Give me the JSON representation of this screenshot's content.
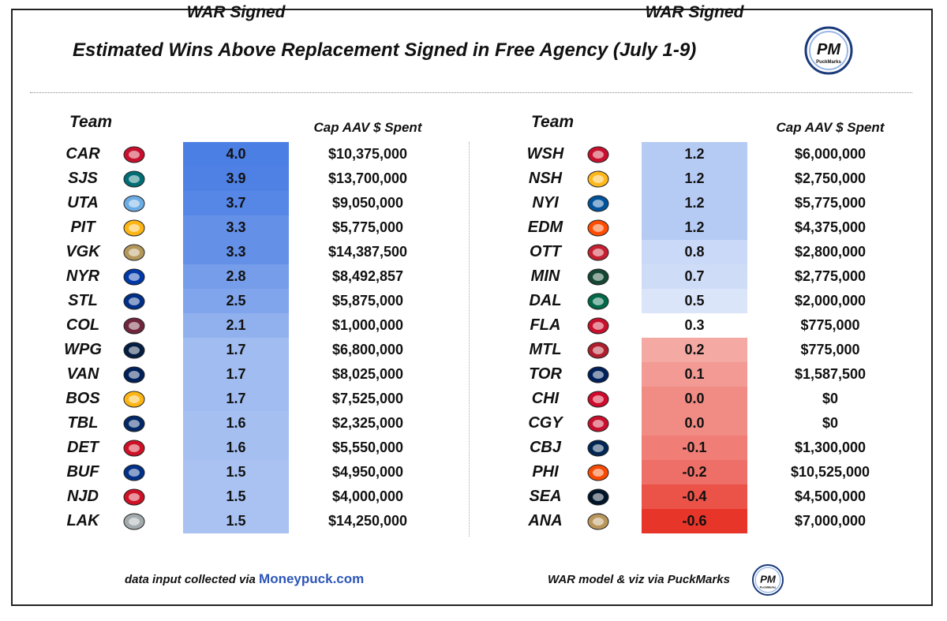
{
  "title": "Estimated Wins Above Replacement Signed in Free Agency (July 1-9)",
  "logo": {
    "text": "PM",
    "subtext": "PuckMarks"
  },
  "headers": {
    "team": "Team",
    "war": "WAR Signed",
    "cap": "Cap AAV $ Spent"
  },
  "colors": {
    "positive_max": "#4c7fe4",
    "positive_min": "#f4f7fd",
    "negative_max": "#e8352a",
    "negative_min": "#f5b0ab",
    "text": "#111111"
  },
  "chart_data": {
    "type": "table",
    "title": "Estimated Wins Above Replacement Signed in Free Agency (July 1-9)",
    "columns": [
      "Team",
      "WAR Signed",
      "Cap AAV $ Spent"
    ],
    "rows": [
      {
        "team": "CAR",
        "war": "4.0",
        "cap": "$10,375,000"
      },
      {
        "team": "SJS",
        "war": "3.9",
        "cap": "$13,700,000"
      },
      {
        "team": "UTA",
        "war": "3.7",
        "cap": "$9,050,000"
      },
      {
        "team": "PIT",
        "war": "3.3",
        "cap": "$5,775,000"
      },
      {
        "team": "VGK",
        "war": "3.3",
        "cap": "$14,387,500"
      },
      {
        "team": "NYR",
        "war": "2.8",
        "cap": "$8,492,857"
      },
      {
        "team": "STL",
        "war": "2.5",
        "cap": "$5,875,000"
      },
      {
        "team": "COL",
        "war": "2.1",
        "cap": "$1,000,000"
      },
      {
        "team": "WPG",
        "war": "1.7",
        "cap": "$6,800,000"
      },
      {
        "team": "VAN",
        "war": "1.7",
        "cap": "$8,025,000"
      },
      {
        "team": "BOS",
        "war": "1.7",
        "cap": "$7,525,000"
      },
      {
        "team": "TBL",
        "war": "1.6",
        "cap": "$2,325,000"
      },
      {
        "team": "DET",
        "war": "1.6",
        "cap": "$5,550,000"
      },
      {
        "team": "BUF",
        "war": "1.5",
        "cap": "$4,950,000"
      },
      {
        "team": "NJD",
        "war": "1.5",
        "cap": "$4,000,000"
      },
      {
        "team": "LAK",
        "war": "1.5",
        "cap": "$14,250,000"
      },
      {
        "team": "WSH",
        "war": "1.2",
        "cap": "$6,000,000"
      },
      {
        "team": "NSH",
        "war": "1.2",
        "cap": "$2,750,000"
      },
      {
        "team": "NYI",
        "war": "1.2",
        "cap": "$5,775,000"
      },
      {
        "team": "EDM",
        "war": "1.2",
        "cap": "$4,375,000"
      },
      {
        "team": "OTT",
        "war": "0.8",
        "cap": "$2,800,000"
      },
      {
        "team": "MIN",
        "war": "0.7",
        "cap": "$2,775,000"
      },
      {
        "team": "DAL",
        "war": "0.5",
        "cap": "$2,000,000"
      },
      {
        "team": "FLA",
        "war": "0.3",
        "cap": "$775,000"
      },
      {
        "team": "MTL",
        "war": "0.2",
        "cap": "$775,000"
      },
      {
        "team": "TOR",
        "war": "0.1",
        "cap": "$1,587,500"
      },
      {
        "team": "CHI",
        "war": "0.0",
        "cap": "$0"
      },
      {
        "team": "CGY",
        "war": "0.0",
        "cap": "$0"
      },
      {
        "team": "CBJ",
        "war": "-0.1",
        "cap": "$1,300,000"
      },
      {
        "team": "PHI",
        "war": "-0.2",
        "cap": "$10,525,000"
      },
      {
        "team": "SEA",
        "war": "-0.4",
        "cap": "$4,500,000"
      },
      {
        "team": "ANA",
        "war": "-0.6",
        "cap": "$7,000,000"
      }
    ]
  },
  "footer": {
    "left_text": "data input collected via ",
    "left_link": "Moneypuck.com",
    "right_text": "WAR model & viz via PuckMarks"
  }
}
